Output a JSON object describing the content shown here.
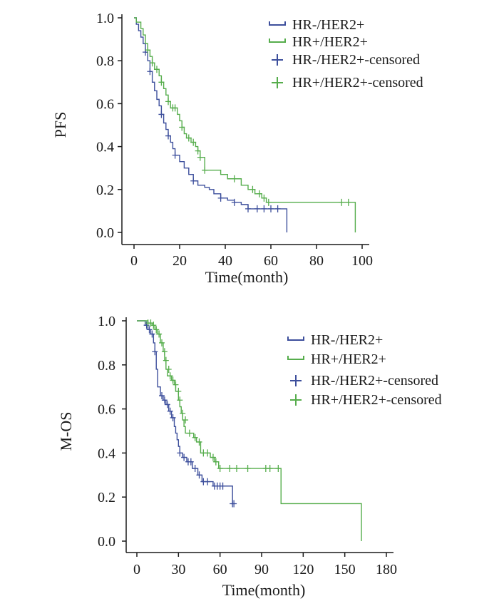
{
  "chart_data": [
    {
      "type": "line",
      "subtype": "kaplan-meier",
      "title": "",
      "xlabel": "Time(month)",
      "ylabel": "PFS",
      "xlim": [
        0,
        100
      ],
      "ylim": [
        0,
        1.0
      ],
      "xticks": [
        0,
        20,
        40,
        60,
        80,
        100
      ],
      "yticks": [
        0.0,
        0.2,
        0.4,
        0.6,
        0.8,
        1.0
      ],
      "yticklabels": [
        "0.0",
        "0.2",
        "0.4",
        "0.6",
        "0.8",
        "1.0"
      ],
      "legend": [
        "HR-/HER2+",
        "HR+/HER2+",
        "HR-/HER2+-censored",
        "HR+/HER2+-censored"
      ],
      "legend_position": "top-right",
      "series": [
        {
          "name": "HR-/HER2+",
          "color": "#3d4f9c",
          "steps": [
            [
              0,
              1.0
            ],
            [
              1,
              0.97
            ],
            [
              2,
              0.94
            ],
            [
              3,
              0.91
            ],
            [
              4,
              0.88
            ],
            [
              5,
              0.84
            ],
            [
              6,
              0.8
            ],
            [
              7,
              0.75
            ],
            [
              8,
              0.7
            ],
            [
              9,
              0.66
            ],
            [
              10,
              0.62
            ],
            [
              11,
              0.59
            ],
            [
              12,
              0.55
            ],
            [
              13,
              0.51
            ],
            [
              14,
              0.48
            ],
            [
              15,
              0.45
            ],
            [
              16,
              0.42
            ],
            [
              17,
              0.39
            ],
            [
              18,
              0.36
            ],
            [
              20,
              0.33
            ],
            [
              22,
              0.3
            ],
            [
              24,
              0.27
            ],
            [
              26,
              0.24
            ],
            [
              28,
              0.22
            ],
            [
              31,
              0.21
            ],
            [
              33,
              0.2
            ],
            [
              35,
              0.18
            ],
            [
              38,
              0.16
            ],
            [
              41,
              0.15
            ],
            [
              44,
              0.14
            ],
            [
              47,
              0.13
            ],
            [
              50,
              0.11
            ],
            [
              67,
              0.0
            ]
          ],
          "end_x": 67,
          "censored": [
            [
              5,
              0.84
            ],
            [
              7,
              0.75
            ],
            [
              12,
              0.55
            ],
            [
              15,
              0.45
            ],
            [
              18,
              0.36
            ],
            [
              26,
              0.24
            ],
            [
              38,
              0.16
            ],
            [
              44,
              0.14
            ],
            [
              50,
              0.11
            ],
            [
              54,
              0.11
            ],
            [
              57,
              0.11
            ],
            [
              60,
              0.11
            ],
            [
              63,
              0.11
            ]
          ]
        },
        {
          "name": "HR+/HER2+",
          "color": "#56ad4c",
          "steps": [
            [
              0,
              1.0
            ],
            [
              1,
              0.98
            ],
            [
              3,
              0.95
            ],
            [
              4,
              0.92
            ],
            [
              5,
              0.88
            ],
            [
              6,
              0.85
            ],
            [
              7,
              0.82
            ],
            [
              8,
              0.79
            ],
            [
              9,
              0.76
            ],
            [
              11,
              0.73
            ],
            [
              12,
              0.7
            ],
            [
              13,
              0.67
            ],
            [
              14,
              0.64
            ],
            [
              15,
              0.61
            ],
            [
              16,
              0.58
            ],
            [
              19,
              0.55
            ],
            [
              20,
              0.52
            ],
            [
              21,
              0.49
            ],
            [
              22,
              0.46
            ],
            [
              23,
              0.44
            ],
            [
              25,
              0.42
            ],
            [
              27,
              0.4
            ],
            [
              28,
              0.38
            ],
            [
              29,
              0.35
            ],
            [
              31,
              0.29
            ],
            [
              38,
              0.27
            ],
            [
              41,
              0.25
            ],
            [
              47,
              0.22
            ],
            [
              50,
              0.2
            ],
            [
              53,
              0.18
            ],
            [
              56,
              0.16
            ],
            [
              58,
              0.14
            ],
            [
              97,
              0.0
            ]
          ],
          "end_x": 97,
          "censored": [
            [
              6,
              0.85
            ],
            [
              8,
              0.79
            ],
            [
              10,
              0.76
            ],
            [
              12,
              0.7
            ],
            [
              15,
              0.61
            ],
            [
              17,
              0.58
            ],
            [
              18,
              0.58
            ],
            [
              21,
              0.49
            ],
            [
              24,
              0.44
            ],
            [
              26,
              0.42
            ],
            [
              28,
              0.38
            ],
            [
              29,
              0.35
            ],
            [
              31,
              0.29
            ],
            [
              44,
              0.25
            ],
            [
              52,
              0.2
            ],
            [
              55,
              0.18
            ],
            [
              57,
              0.16
            ],
            [
              59,
              0.14
            ],
            [
              91,
              0.14
            ],
            [
              94,
              0.14
            ]
          ]
        }
      ]
    },
    {
      "type": "line",
      "subtype": "kaplan-meier",
      "title": "",
      "xlabel": "Time(month)",
      "ylabel": "M-OS",
      "xlim": [
        0,
        180
      ],
      "ylim": [
        0,
        1.0
      ],
      "xticks": [
        0,
        30,
        60,
        90,
        120,
        150,
        180
      ],
      "yticks": [
        0.0,
        0.2,
        0.4,
        0.6,
        0.8,
        1.0
      ],
      "yticklabels": [
        "0.0",
        "0.2",
        "0.4",
        "0.6",
        "0.8",
        "1.0"
      ],
      "legend": [
        "HR-/HER2+",
        "HR+/HER2+",
        "HR-/HER2+-censored",
        "HR+/HER2+-censored"
      ],
      "legend_position": "right",
      "series": [
        {
          "name": "HR-/HER2+",
          "color": "#3d4f9c",
          "steps": [
            [
              0,
              1.0
            ],
            [
              6,
              0.98
            ],
            [
              8,
              0.96
            ],
            [
              10,
              0.94
            ],
            [
              12,
              0.9
            ],
            [
              13,
              0.86
            ],
            [
              14,
              0.78
            ],
            [
              15,
              0.7
            ],
            [
              17,
              0.66
            ],
            [
              19,
              0.64
            ],
            [
              21,
              0.62
            ],
            [
              23,
              0.59
            ],
            [
              25,
              0.56
            ],
            [
              27,
              0.52
            ],
            [
              28,
              0.49
            ],
            [
              29,
              0.46
            ],
            [
              30,
              0.43
            ],
            [
              31,
              0.4
            ],
            [
              33,
              0.38
            ],
            [
              36,
              0.36
            ],
            [
              40,
              0.33
            ],
            [
              44,
              0.3
            ],
            [
              47,
              0.27
            ],
            [
              55,
              0.25
            ],
            [
              69,
              0.17
            ]
          ],
          "end_x": 70,
          "censored": [
            [
              7,
              0.98
            ],
            [
              9,
              0.96
            ],
            [
              11,
              0.94
            ],
            [
              13,
              0.86
            ],
            [
              18,
              0.66
            ],
            [
              20,
              0.64
            ],
            [
              22,
              0.62
            ],
            [
              24,
              0.59
            ],
            [
              26,
              0.56
            ],
            [
              31,
              0.4
            ],
            [
              34,
              0.38
            ],
            [
              37,
              0.36
            ],
            [
              39,
              0.36
            ],
            [
              42,
              0.33
            ],
            [
              45,
              0.3
            ],
            [
              48,
              0.27
            ],
            [
              51,
              0.27
            ],
            [
              56,
              0.25
            ],
            [
              58,
              0.25
            ],
            [
              60,
              0.25
            ],
            [
              62,
              0.25
            ],
            [
              69,
              0.17
            ],
            [
              70,
              0.17
            ]
          ]
        },
        {
          "name": "HR+/HER2+",
          "color": "#56ad4c",
          "steps": [
            [
              0,
              1.0
            ],
            [
              8,
              0.99
            ],
            [
              11,
              0.98
            ],
            [
              13,
              0.96
            ],
            [
              15,
              0.94
            ],
            [
              17,
              0.9
            ],
            [
              19,
              0.86
            ],
            [
              20,
              0.82
            ],
            [
              21,
              0.78
            ],
            [
              22,
              0.75
            ],
            [
              25,
              0.73
            ],
            [
              27,
              0.71
            ],
            [
              28,
              0.68
            ],
            [
              30,
              0.64
            ],
            [
              31,
              0.61
            ],
            [
              32,
              0.58
            ],
            [
              33,
              0.55
            ],
            [
              34,
              0.52
            ],
            [
              35,
              0.49
            ],
            [
              41,
              0.47
            ],
            [
              43,
              0.45
            ],
            [
              46,
              0.4
            ],
            [
              53,
              0.38
            ],
            [
              56,
              0.36
            ],
            [
              59,
              0.33
            ],
            [
              104,
              0.17
            ],
            [
              162,
              0.0
            ]
          ],
          "end_x": 162,
          "censored": [
            [
              8,
              0.99
            ],
            [
              10,
              0.99
            ],
            [
              12,
              0.98
            ],
            [
              14,
              0.96
            ],
            [
              16,
              0.94
            ],
            [
              18,
              0.9
            ],
            [
              20,
              0.86
            ],
            [
              21,
              0.82
            ],
            [
              23,
              0.78
            ],
            [
              24,
              0.75
            ],
            [
              26,
              0.73
            ],
            [
              28,
              0.71
            ],
            [
              30,
              0.68
            ],
            [
              31,
              0.64
            ],
            [
              33,
              0.58
            ],
            [
              35,
              0.55
            ],
            [
              38,
              0.49
            ],
            [
              42,
              0.47
            ],
            [
              45,
              0.45
            ],
            [
              48,
              0.4
            ],
            [
              51,
              0.4
            ],
            [
              55,
              0.38
            ],
            [
              57,
              0.36
            ],
            [
              60,
              0.33
            ],
            [
              67,
              0.33
            ],
            [
              72,
              0.33
            ],
            [
              80,
              0.33
            ],
            [
              93,
              0.33
            ],
            [
              96,
              0.33
            ],
            [
              102,
              0.33
            ]
          ]
        }
      ]
    }
  ]
}
